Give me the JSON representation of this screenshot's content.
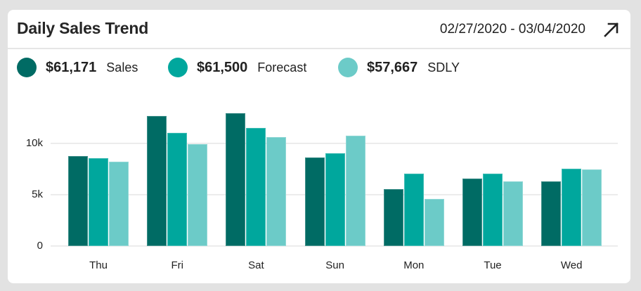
{
  "header": {
    "title": "Daily Sales Trend",
    "date_range": "02/27/2020 - 03/04/2020",
    "expand_icon": "arrow-up-right-icon"
  },
  "legend": [
    {
      "value": "$61,171",
      "label": "Sales",
      "color": "#006b64"
    },
    {
      "value": "$61,500",
      "label": "Forecast",
      "color": "#00a79d"
    },
    {
      "value": "$57,667",
      "label": "SDLY",
      "color": "#6ccbc8"
    }
  ],
  "chart_data": {
    "type": "bar",
    "title": "Daily Sales Trend",
    "xlabel": "",
    "ylabel": "",
    "categories": [
      "Thu",
      "Fri",
      "Sat",
      "Sun",
      "Mon",
      "Tue",
      "Wed"
    ],
    "series": [
      {
        "name": "Sales",
        "color": "#006b64",
        "values": [
          8750,
          12600,
          12900,
          8600,
          5500,
          6550,
          6250
        ]
      },
      {
        "name": "Forecast",
        "color": "#00a79d",
        "values": [
          8500,
          11000,
          11500,
          9000,
          7000,
          7000,
          7500
        ]
      },
      {
        "name": "SDLY",
        "color": "#6ccbc8",
        "values": [
          8200,
          9900,
          10600,
          10700,
          4600,
          6250,
          7450
        ]
      }
    ],
    "totals": {
      "Sales": 61171,
      "Forecast": 61500,
      "SDLY": 57667
    },
    "yticks": [
      {
        "value": 0,
        "label": "0"
      },
      {
        "value": 5000,
        "label": "5k"
      },
      {
        "value": 10000,
        "label": "10k"
      }
    ],
    "ylim": [
      0,
      14000
    ],
    "grid": true,
    "legend_position": "top"
  }
}
